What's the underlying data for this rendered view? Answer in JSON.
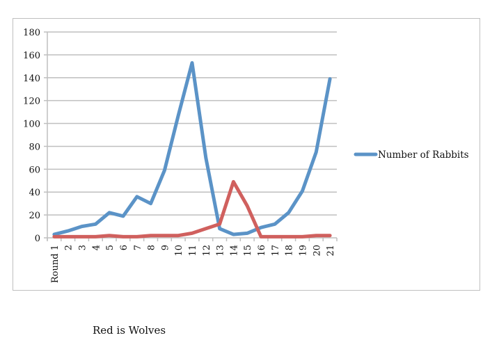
{
  "chart_data": {
    "type": "line",
    "title": "",
    "xlabel": "",
    "ylabel": "",
    "categories": [
      "Round 1",
      "2",
      "3",
      "4",
      "5",
      "6",
      "7",
      "8",
      "9",
      "10",
      "11",
      "12",
      "13",
      "14",
      "15",
      "16",
      "17",
      "18",
      "19",
      "20",
      "21"
    ],
    "series": [
      {
        "name": "Number of Rabbits",
        "color": "#5b93c7",
        "values": [
          3,
          6,
          10,
          12,
          22,
          19,
          36,
          30,
          59,
          107,
          153,
          70,
          8,
          3,
          4,
          9,
          12,
          22,
          41,
          75,
          139
        ]
      },
      {
        "name": "",
        "color": "#d0605e",
        "values": [
          1,
          1,
          1,
          1,
          2,
          1,
          1,
          2,
          2,
          2,
          4,
          8,
          12,
          49,
          28,
          1,
          1,
          1,
          1,
          2,
          2
        ]
      }
    ],
    "ylim": [
      0,
      180
    ],
    "yticks": [
      0,
      20,
      40,
      60,
      80,
      100,
      120,
      140,
      160,
      180
    ],
    "grid": true,
    "legend": {
      "position": "right",
      "entries": [
        "Number of Rabbits"
      ]
    }
  },
  "caption": "Red is Wolves"
}
